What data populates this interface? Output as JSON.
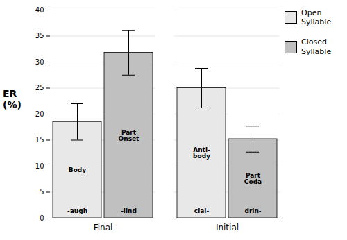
{
  "chart_data": {
    "type": "bar",
    "categories": [
      "Final",
      "Initial"
    ],
    "series": [
      {
        "name": "Open\nSyllable",
        "color": "#e8e8e8",
        "values": [
          18.5,
          25.0
        ],
        "errors": [
          3.5,
          3.8
        ],
        "inner_labels": [
          "Body",
          "Anti-\nbody"
        ],
        "base_labels": [
          "-augh",
          "clai-"
        ]
      },
      {
        "name": "Closed\nSyllable",
        "color": "#c0c0c0",
        "values": [
          31.8,
          15.2
        ],
        "errors": [
          4.3,
          2.5
        ],
        "inner_labels": [
          "Part\nOnset",
          "Part\nCoda"
        ],
        "base_labels": [
          "-lind",
          "drin-"
        ]
      }
    ],
    "y_label": "ER\n(%)",
    "ylim": [
      0,
      40
    ],
    "yticks": [
      0,
      5,
      10,
      15,
      20,
      25,
      30,
      35,
      40
    ],
    "grid": true,
    "legend": "right"
  }
}
